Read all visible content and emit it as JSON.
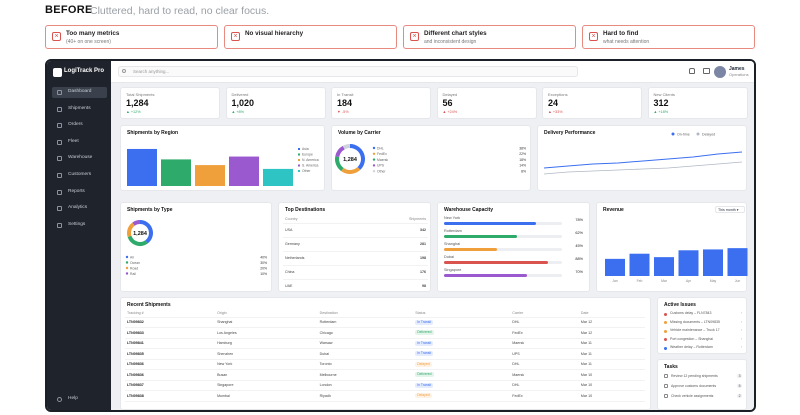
{
  "header": {
    "title": "BEFORE",
    "subtitle": "Cluttered, hard to read, no clear focus."
  },
  "problems": [
    {
      "title": "Too many metrics",
      "sub": "(40+ on one screen)"
    },
    {
      "title": "No visual hierarchy",
      "sub": ""
    },
    {
      "title": "Different chart styles",
      "sub": "and inconsistent design"
    },
    {
      "title": "Hard to find",
      "sub": "what needs attention"
    }
  ],
  "app": {
    "name": "LogiTrack Pro",
    "search_placeholder": "Search anything...",
    "user_name": "James",
    "user_role": "Operations"
  },
  "nav": [
    "Dashboard",
    "Shipments",
    "Orders",
    "Fleet",
    "Warehouse",
    "Customers",
    "Reports",
    "Analytics",
    "Settings"
  ],
  "nav_footer": "Help",
  "kpis": [
    {
      "label": "Total Shipments",
      "value": "1,284",
      "delta": "▲ +12%",
      "up": true
    },
    {
      "label": "Delivered",
      "value": "1,020",
      "delta": "▲ +8%",
      "up": true
    },
    {
      "label": "In Transit",
      "value": "184",
      "delta": "▼ -5%",
      "up": false
    },
    {
      "label": "Delayed",
      "value": "56",
      "delta": "▲ +24%",
      "up": false
    },
    {
      "label": "Exceptions",
      "value": "24",
      "delta": "▲ +33%",
      "up": false
    },
    {
      "label": "New Clients",
      "value": "312",
      "delta": "▲ +18%",
      "up": true
    }
  ],
  "region": {
    "title": "Shipments by Region",
    "legend": [
      "Asia",
      "Europe",
      "N. America",
      "S. America",
      "Other"
    ],
    "values": [
      78,
      56,
      44,
      62,
      36
    ],
    "colors": [
      "#3b6ff0",
      "#2eaa6a",
      "#f0a03a",
      "#9b59d0",
      "#2ec4c4"
    ]
  },
  "carrier": {
    "title": "Volume by Carrier",
    "center": "1,284",
    "legend": [
      {
        "n": "DHL",
        "p": "38%",
        "c": "#3b6ff0"
      },
      {
        "n": "FedEx",
        "p": "22%",
        "c": "#f0a03a"
      },
      {
        "n": "Maersk",
        "p": "18%",
        "c": "#2eaa6a"
      },
      {
        "n": "UPS",
        "p": "14%",
        "c": "#9b59d0"
      },
      {
        "n": "Other",
        "p": "8%",
        "c": "#cfd4dc"
      }
    ]
  },
  "delivery": {
    "title": "Delivery Performance",
    "legend": [
      "On-time",
      "Delayed"
    ]
  },
  "type": {
    "title": "Shipments by Type",
    "center": "1,284",
    "legend": [
      {
        "n": "Air",
        "p": "40%",
        "c": "#3b6ff0"
      },
      {
        "n": "Ocean",
        "p": "30%",
        "c": "#2eaa6a"
      },
      {
        "n": "Road",
        "p": "20%",
        "c": "#f0a03a"
      },
      {
        "n": "Rail",
        "p": "10%",
        "c": "#9b59d0"
      }
    ]
  },
  "destinations": {
    "title": "Top Destinations",
    "cols": [
      "Country",
      "Shipments"
    ],
    "rows": [
      [
        "USA",
        "342"
      ],
      [
        "Germany",
        "281"
      ],
      [
        "Netherlands",
        "198"
      ],
      [
        "China",
        "176"
      ],
      [
        "UAE",
        "98"
      ]
    ]
  },
  "warehouse": {
    "title": "Warehouse Capacity",
    "items": [
      {
        "n": "New York",
        "p": "78%",
        "v": 0.78,
        "c": "#3b6ff0"
      },
      {
        "n": "Rotterdam",
        "p": "62%",
        "v": 0.62,
        "c": "#2eaa6a"
      },
      {
        "n": "Shanghai",
        "p": "45%",
        "v": 0.45,
        "c": "#f0a03a"
      },
      {
        "n": "Dubai",
        "p": "88%",
        "v": 0.88,
        "c": "#d9534f"
      },
      {
        "n": "Singapore",
        "p": "70%",
        "v": 0.7,
        "c": "#9b59d0"
      }
    ]
  },
  "revenue": {
    "title": "Revenue",
    "period": "This month ▾",
    "months": [
      "Jan",
      "Feb",
      "Mar",
      "Apr",
      "May",
      "Jun"
    ],
    "values": [
      40,
      52,
      44,
      60,
      62,
      65
    ]
  },
  "recent": {
    "title": "Recent Shipments",
    "cols": [
      "Tracking #",
      "Origin",
      "Destination",
      "Status",
      "Carrier",
      "Date"
    ],
    "rows": [
      [
        "LTN09832",
        "Shanghai",
        "Rotterdam",
        "In Transit",
        "DHL",
        "Mar 12"
      ],
      [
        "LTN09833",
        "Los Angeles",
        "Chicago",
        "Delivered",
        "FedEx",
        "Mar 12"
      ],
      [
        "LTN09841",
        "Hamburg",
        "Warsaw",
        "In Transit",
        "Maersk",
        "Mar 11"
      ],
      [
        "LTN09835",
        "Shenzhen",
        "Dubai",
        "In Transit",
        "UPS",
        "Mar 11"
      ],
      [
        "LTN09836",
        "New York",
        "Toronto",
        "Delayed",
        "DHL",
        "Mar 11"
      ],
      [
        "LTN09836",
        "Busan",
        "Melbourne",
        "Delivered",
        "Maersk",
        "Mar 10"
      ],
      [
        "LTN09837",
        "Singapore",
        "London",
        "In Transit",
        "DHL",
        "Mar 10"
      ],
      [
        "LTN09838",
        "Mumbai",
        "Riyadh",
        "Delayed",
        "FedEx",
        "Mar 10"
      ]
    ]
  },
  "issues": {
    "title": "Active Issues",
    "items": [
      "Customs delay – FLN7843",
      "Missing documents – LTN09835",
      "Vehicle maintenance – Truck 17",
      "Port congestion – Shanghai",
      "Weather delay – Rotterdam"
    ],
    "colors": [
      "#d9534f",
      "#f0a03a",
      "#f0a03a",
      "#d9534f",
      "#3b6ff0"
    ]
  },
  "tasks": {
    "title": "Tasks",
    "items": [
      {
        "t": "Review 12 pending shipments",
        "n": "3"
      },
      {
        "t": "Approve customs documents",
        "n": "5"
      },
      {
        "t": "Check vehicle assignments",
        "n": "2"
      }
    ]
  },
  "status_colors": {
    "In Transit": "#3b6ff0",
    "Delivered": "#2eaa6a",
    "Delayed": "#f0a03a"
  }
}
